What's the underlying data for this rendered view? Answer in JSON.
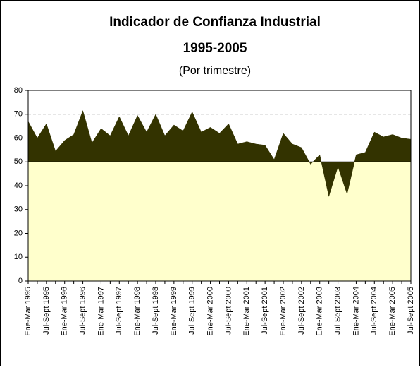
{
  "chart_data": {
    "type": "area",
    "title": "Indicador de Confianza Industrial",
    "subtitle": "1995-2005",
    "note": "(Por trimestre)",
    "categories": [
      "Ene-Mar 1995",
      null,
      "Jul-Sept 1995",
      null,
      "Ene-Mar 1996",
      null,
      "Jul-Sept 1996",
      null,
      "Ene-Mar 1997",
      null,
      "Jul-Sept 1997",
      null,
      "Ene-Mar 1998",
      null,
      "Jul-Sept 1998",
      null,
      "Ene-Mar 1999",
      null,
      "Jul-Sept 1999",
      null,
      "Ene-Mar 2000",
      null,
      "Jul-Sept 2000",
      null,
      "Ene-Mar 2001",
      null,
      "Jul-Sept 2001",
      null,
      "Ene-Mar 2002",
      null,
      "Jul-Sept 2002",
      null,
      "Ene-Mar 2003",
      null,
      "Jul-Sept 2003",
      null,
      "Ene-Mar 2004",
      null,
      "Jul-Sept 2004",
      null,
      "Ene-Mar 2005",
      null,
      "Jul-Sept 2005"
    ],
    "values": [
      67,
      60,
      66,
      54.5,
      59,
      61.5,
      71.5,
      58,
      64,
      61,
      69,
      61,
      69.5,
      62.5,
      70,
      61,
      65.5,
      63,
      71,
      62.5,
      64.5,
      62,
      66,
      57.5,
      58.5,
      57.5,
      57,
      51,
      62,
      57.5,
      56,
      49,
      53,
      35.5,
      48,
      36.5,
      53,
      54,
      62.5,
      60.5,
      61.5,
      60,
      59.5
    ],
    "color": "#333300",
    "baseline": 50,
    "band_color": "#ffffcc",
    "ylim": [
      0,
      80
    ],
    "yticks": [
      0,
      10,
      20,
      30,
      40,
      50,
      60,
      70,
      80
    ],
    "grid": true
  }
}
